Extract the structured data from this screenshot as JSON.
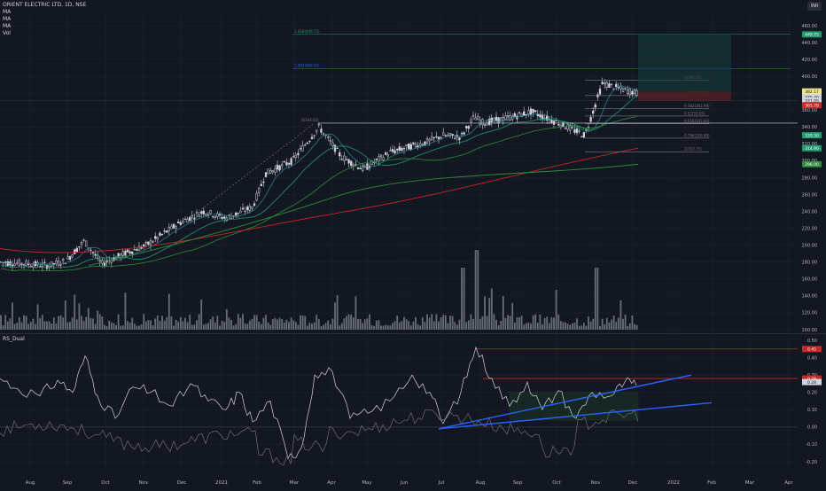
{
  "legend": {
    "symbol": "ORIENT ELECTRIC LTD, 1D, NSE",
    "ma1": "MA",
    "ma2": "MA",
    "ma3": "MA",
    "vol": "Vol"
  },
  "indicator": {
    "title": "RS_Dual"
  },
  "badge": "INR",
  "colors": {
    "bg": "#131722",
    "grid": "#1e222d",
    "candle": "#d1d4dc",
    "ma_fast": "#2a7d8c",
    "ma_mid": "#1f9b6e",
    "ma_slow": "#2e8b3a",
    "ma_200": "#c62828",
    "fib": "#8f95a3",
    "trend": "#2962ff",
    "rs_red": "#c62828",
    "rs_line": "#d1d4dc",
    "rs_line2": "#787b86",
    "target_box": "#163c3c",
    "stop_box": "#4a1f24"
  },
  "price_axis": {
    "ticks": [
      "460.00",
      "440.00",
      "420.00",
      "400.00",
      "380.00",
      "360.00",
      "340.00",
      "320.00",
      "300.00",
      "280.00",
      "260.00",
      "240.00",
      "220.00",
      "200.00",
      "180.00",
      "160.00",
      "140.00",
      "120.00",
      "100.00"
    ],
    "labels": [
      {
        "text": "449.75",
        "color": "#1f9b6e"
      },
      {
        "text": "382.17",
        "color": "#f0e68c"
      },
      {
        "text": "375.40",
        "color": "#d1d4dc"
      },
      {
        "text": "371.05",
        "color": "#d1d4dc"
      },
      {
        "text": "365.78",
        "color": "#c62828"
      },
      {
        "text": "330.30",
        "color": "#1f9b6e"
      },
      {
        "text": "314.90",
        "color": "#1f9b6e"
      },
      {
        "text": "296.00",
        "color": "#2e8b3a"
      }
    ]
  },
  "rs_axis": {
    "ticks": [
      "0.50",
      "0.40",
      "0.30",
      "0.20",
      "0.10",
      "0.00",
      "-0.10",
      "-0.20"
    ],
    "labels": [
      {
        "text": "0.45",
        "color": "#c62828"
      },
      {
        "text": "0.28",
        "color": "#c62828"
      },
      {
        "text": "0.28",
        "color": "#d1d4dc"
      }
    ]
  },
  "time_axis": [
    "Aug",
    "Sep",
    "Oct",
    "Nov",
    "Dec",
    "2021",
    "Feb",
    "Mar",
    "Apr",
    "May",
    "Jun",
    "Jul",
    "Aug",
    "Sep",
    "Oct",
    "Nov",
    "Dec",
    "2022",
    "Feb",
    "Mar",
    "Apr"
  ],
  "fib_labels": {
    "ext1": "1.618(449.75)",
    "ext2": "1.382(409.05)",
    "top": "0(395.35)",
    "r1": "0.236(377.22)",
    "r2": "0.382(361.98)",
    "r3": "0.5(353.05)",
    "r4": "0.618(343.80)",
    "r5": "0.786(326.80)",
    "base": "1(310.75)",
    "left": "0(344.60)"
  },
  "chart_data": {
    "type": "candlestick",
    "title": "ORIENT ELECTRIC LTD, 1D, NSE",
    "xlabel": "",
    "ylabel": "",
    "ylim": [
      90,
      470
    ],
    "x": [
      "Aug",
      "Sep",
      "Oct",
      "Nov",
      "Dec",
      "2021",
      "Feb",
      "Mar",
      "Apr",
      "May",
      "Jun",
      "Jul",
      "Aug",
      "Sep",
      "Oct",
      "Nov",
      "Dec"
    ],
    "close": [
      178,
      205,
      182,
      205,
      230,
      240,
      290,
      360,
      300,
      282,
      320,
      322,
      360,
      350,
      345,
      390,
      375
    ],
    "ma_slow_level": [
      176,
      178,
      183,
      192,
      205,
      218,
      230,
      240,
      255,
      268,
      272,
      280,
      293,
      300,
      305,
      311,
      315
    ]
  }
}
